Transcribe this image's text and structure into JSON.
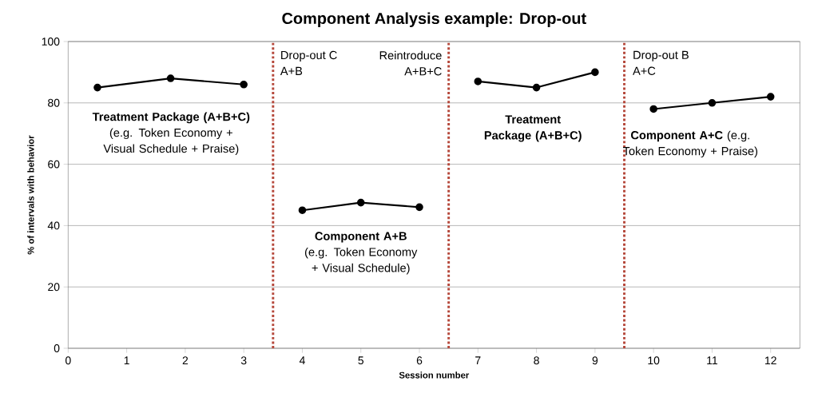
{
  "chart_data": {
    "type": "line",
    "title": "Component Analysis example: Drop-out",
    "xlabel": "Session number",
    "ylabel": "% of intervals with behavior",
    "series": [
      {
        "color": "#000000",
        "x": [
          0.5,
          1.75,
          3
        ],
        "values": [
          85,
          88,
          86
        ]
      },
      {
        "color": "#000000",
        "x": [
          4,
          5,
          6
        ],
        "values": [
          45,
          47.5,
          46
        ]
      },
      {
        "color": "#000000",
        "x": [
          7,
          8,
          9
        ],
        "values": [
          87,
          85,
          90
        ]
      },
      {
        "color": "#000000",
        "x": [
          10,
          11,
          12
        ],
        "values": [
          78,
          80,
          82
        ]
      }
    ],
    "xlim": [
      0,
      12.5
    ],
    "xticks": [
      0,
      1,
      2,
      3,
      4,
      5,
      6,
      7,
      8,
      9,
      10,
      11,
      12
    ],
    "ylim": [
      0,
      100
    ],
    "yticks": [
      0,
      20,
      40,
      60,
      80,
      100
    ],
    "grid": "y",
    "marker": "circle",
    "line_style": "solid",
    "ref_lines": [
      {
        "axis": "x",
        "value": 3.5,
        "color": "#b5473a",
        "line_style": "dotted"
      },
      {
        "axis": "x",
        "value": 6.5,
        "color": "#b5473a",
        "line_style": "dotted"
      },
      {
        "axis": "x",
        "value": 9.5,
        "color": "#b5473a",
        "line_style": "dotted"
      }
    ],
    "annotations": [
      "**Treatment Package (A+B+C)** (e.g. Token Economy + Visual Schedule + Praise)",
      "Drop-out C A+B",
      "Reintroduce A+B+C",
      "**Component A+B** (e.g. Token Economy + Visual Schedule)",
      "**Treatment Package (A+B+C)**",
      "Drop-out B A+C",
      "**Component A+C** (e.g. Token Economy + Praise)"
    ]
  }
}
